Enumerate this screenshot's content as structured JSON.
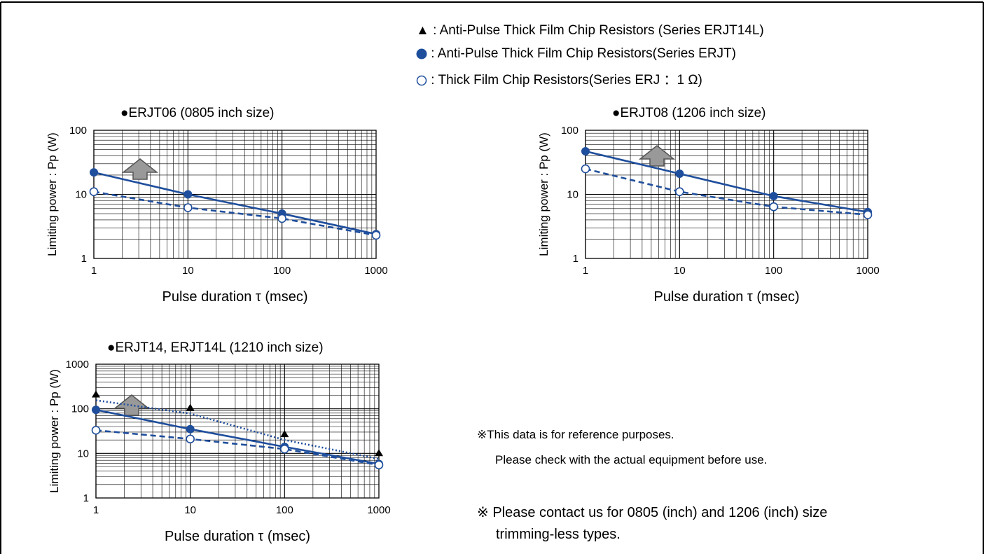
{
  "legend": {
    "triangle": "▲ : Anti-Pulse Thick Film Chip Resistors (Series ERJT14L)",
    "filled_circle": ": Anti-Pulse Thick Film Chip Resistors(Series ERJT)",
    "open_circle": ": Thick Film Chip Resistors(Series ERJ ：1 Ω)"
  },
  "notes": {
    "reference_line1": "※This data is for reference purposes.",
    "reference_line2": "Please check with the actual equipment before use.",
    "contact_line1": "※ Please contact us for 0805 (inch) and 1206 (inch) size",
    "contact_line2": "trimming-less types."
  },
  "colors": {
    "series_blue": "#1f4e9c",
    "grid": "#000000",
    "arrow_fill": "#999999",
    "arrow_stroke": "#555555"
  },
  "chart_data": [
    {
      "type": "line",
      "title": "●ERJT06 (0805 inch size)",
      "xlabel": "Pulse duration τ (msec)",
      "ylabel": "Limiting power : Pp (W)",
      "xscale": "log",
      "yscale": "log",
      "xlim": [
        1,
        1000
      ],
      "ylim": [
        1,
        100
      ],
      "xticks": [
        "1",
        "10",
        "100",
        "1000"
      ],
      "yticks": [
        "1",
        "10",
        "100"
      ],
      "grid": true,
      "series": [
        {
          "marker": "filled_circle",
          "line": "solid",
          "x": [
            1,
            10,
            100,
            1000
          ],
          "y": [
            22,
            10,
            5,
            2.4
          ]
        },
        {
          "marker": "open_circle",
          "line": "dashed",
          "x": [
            1,
            10,
            100,
            1000
          ],
          "y": [
            11,
            6.2,
            4.2,
            2.3
          ]
        }
      ]
    },
    {
      "type": "line",
      "title": "●ERJT08 (1206 inch size)",
      "xlabel": "Pulse duration τ (msec)",
      "ylabel": "Limiting power : Pp (W)",
      "xscale": "log",
      "yscale": "log",
      "xlim": [
        1,
        1000
      ],
      "ylim": [
        1,
        100
      ],
      "xticks": [
        "1",
        "10",
        "100",
        "1000"
      ],
      "yticks": [
        "1",
        "10",
        "100"
      ],
      "grid": true,
      "series": [
        {
          "marker": "filled_circle",
          "line": "solid",
          "x": [
            1,
            10,
            100,
            1000
          ],
          "y": [
            47,
            21,
            9.4,
            5.3
          ]
        },
        {
          "marker": "open_circle",
          "line": "dashed",
          "x": [
            1,
            10,
            100,
            1000
          ],
          "y": [
            25,
            11,
            6.4,
            4.8
          ]
        }
      ]
    },
    {
      "type": "line",
      "title": "●ERJT14, ERJT14L (1210 inch size)",
      "xlabel": "Pulse duration τ (msec)",
      "ylabel": "Limiting power : Pp (W)",
      "xscale": "log",
      "yscale": "log",
      "xlim": [
        1,
        1000
      ],
      "ylim": [
        1,
        1000
      ],
      "xticks": [
        "1",
        "10",
        "100",
        "1000"
      ],
      "yticks": [
        "1",
        "10",
        "100",
        "1000"
      ],
      "grid": true,
      "series": [
        {
          "marker": "triangle",
          "line": "dotted",
          "x": [
            1,
            10,
            100,
            1000
          ],
          "y": [
            155,
            78,
            20,
            7.5
          ]
        },
        {
          "marker": "filled_circle",
          "line": "solid",
          "x": [
            1,
            10,
            100,
            1000
          ],
          "y": [
            95,
            35,
            14,
            5.8
          ]
        },
        {
          "marker": "open_circle",
          "line": "dashed",
          "x": [
            1,
            10,
            100,
            1000
          ],
          "y": [
            33,
            21,
            12.5,
            5.5
          ]
        }
      ]
    }
  ]
}
